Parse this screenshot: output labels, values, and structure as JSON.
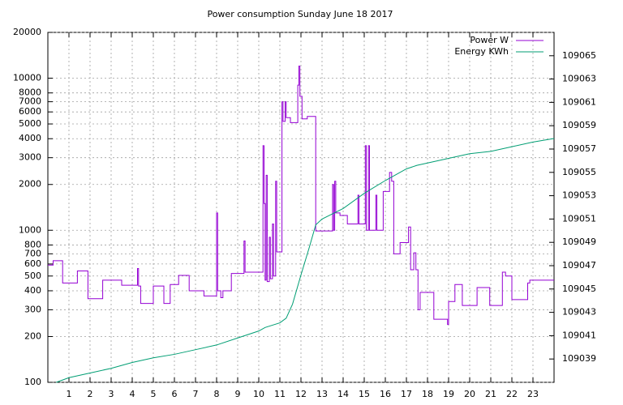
{
  "chart_data": {
    "type": "line",
    "title": "Power consumption Sunday June 18 2017",
    "xlim": [
      0,
      24
    ],
    "xticks": [
      1,
      2,
      3,
      4,
      5,
      6,
      7,
      8,
      9,
      10,
      11,
      12,
      13,
      14,
      15,
      16,
      17,
      18,
      19,
      20,
      21,
      22,
      23
    ],
    "ylim": [
      100,
      20000
    ],
    "ylog": true,
    "yticks": [
      100,
      200,
      300,
      400,
      500,
      600,
      700,
      800,
      1000,
      2000,
      3000,
      4000,
      5000,
      6000,
      7000,
      8000,
      10000,
      20000
    ],
    "y2lim": [
      109037,
      109067
    ],
    "y2ticks": [
      109039,
      109041,
      109043,
      109045,
      109047,
      109049,
      109051,
      109053,
      109055,
      109057,
      109059,
      109061,
      109063,
      109065
    ],
    "grid": true,
    "legend": "top-right",
    "series": [
      {
        "name": "Power W",
        "color": "#9400d3",
        "x": [
          0,
          0.25,
          0.25,
          0.7,
          0.7,
          1.4,
          1.4,
          1.9,
          1.9,
          2.6,
          2.6,
          3.5,
          3.5,
          4.25,
          4.25,
          4.3,
          4.3,
          4.4,
          4.4,
          5.0,
          5.0,
          5.5,
          5.5,
          5.8,
          5.8,
          6.2,
          6.2,
          6.7,
          6.7,
          7.4,
          7.4,
          8.0,
          8.0,
          8.05,
          8.05,
          8.2,
          8.2,
          8.3,
          8.3,
          8.7,
          8.7,
          9.3,
          9.3,
          9.35,
          9.35,
          10.2,
          10.2,
          10.25,
          10.25,
          10.3,
          10.3,
          10.35,
          10.35,
          10.4,
          10.4,
          10.5,
          10.5,
          10.55,
          10.55,
          10.65,
          10.65,
          10.7,
          10.7,
          10.8,
          10.8,
          10.85,
          10.85,
          11.1,
          11.1,
          11.15,
          11.15,
          11.25,
          11.25,
          11.3,
          11.3,
          11.5,
          11.5,
          11.85,
          11.85,
          11.9,
          11.9,
          11.95,
          11.95,
          12.05,
          12.05,
          12.3,
          12.3,
          12.7,
          12.7,
          13.5,
          13.5,
          13.55,
          13.55,
          13.6,
          13.6,
          13.65,
          13.65,
          13.85,
          13.85,
          14.2,
          14.2,
          14.7,
          14.7,
          14.75,
          14.75,
          15.05,
          15.05,
          15.1,
          15.1,
          15.2,
          15.2,
          15.25,
          15.25,
          15.55,
          15.55,
          15.6,
          15.6,
          15.9,
          15.9,
          16.2,
          16.2,
          16.3,
          16.3,
          16.4,
          16.4,
          16.7,
          16.7,
          17.1,
          17.1,
          17.2,
          17.2,
          17.35,
          17.35,
          17.45,
          17.45,
          17.55,
          17.55,
          17.65,
          17.65,
          18.3,
          18.3,
          18.95,
          18.95,
          19.0,
          19.0,
          19.3,
          19.3,
          19.65,
          19.65,
          20.35,
          20.35,
          20.95,
          20.95,
          21.55,
          21.55,
          21.7,
          21.7,
          22.0,
          22.0,
          22.75,
          22.75,
          22.85,
          22.85,
          24
        ],
        "values": [
          590,
          590,
          630,
          630,
          450,
          450,
          540,
          540,
          355,
          355,
          470,
          470,
          435,
          435,
          560,
          560,
          430,
          430,
          330,
          330,
          430,
          430,
          330,
          330,
          440,
          440,
          505,
          505,
          400,
          400,
          370,
          370,
          1300,
          1300,
          400,
          400,
          360,
          360,
          400,
          400,
          520,
          520,
          850,
          850,
          530,
          530,
          3600,
          3600,
          1500,
          1500,
          470,
          470,
          2300,
          2300,
          460,
          460,
          900,
          900,
          480,
          480,
          1100,
          1100,
          500,
          500,
          2100,
          2100,
          720,
          720,
          7000,
          7000,
          5200,
          5200,
          7000,
          7000,
          5500,
          5500,
          5100,
          5100,
          9000,
          9000,
          12000,
          12000,
          7600,
          7600,
          5400,
          5400,
          5600,
          5600,
          990,
          990,
          2000,
          2000,
          1000,
          1000,
          2100,
          2100,
          1300,
          1300,
          1250,
          1250,
          1100,
          1100,
          1700,
          1700,
          1100,
          1100,
          3600,
          3600,
          1000,
          1000,
          3600,
          3600,
          1000,
          1000,
          1700,
          1700,
          1000,
          1000,
          1800,
          1800,
          2400,
          2400,
          2100,
          2100,
          700,
          700,
          830,
          830,
          1050,
          1050,
          550,
          550,
          710,
          710,
          550,
          550,
          300,
          300,
          390,
          390,
          260,
          260,
          240,
          240,
          340,
          340,
          440,
          440,
          320,
          320,
          420,
          420,
          320,
          320,
          530,
          530,
          500,
          500,
          350,
          350,
          450,
          450,
          470,
          470
        ]
      },
      {
        "name": "Energy KWh",
        "color": "#009e73",
        "axis": "y2",
        "x": [
          0.4,
          1,
          2,
          3,
          4,
          5,
          6,
          7,
          8,
          9,
          10,
          10.3,
          11,
          11.3,
          11.6,
          12,
          12.4,
          12.7,
          13,
          14,
          15,
          16,
          17,
          17.5,
          18,
          19,
          20,
          21,
          22,
          23,
          24
        ],
        "values": [
          109037,
          109037.4,
          109037.8,
          109038.2,
          109038.7,
          109039.1,
          109039.4,
          109039.8,
          109040.2,
          109040.8,
          109041.4,
          109041.7,
          109042.1,
          109042.5,
          109043.7,
          109046.2,
          109048.6,
          109050.5,
          109051,
          109051.9,
          109053.2,
          109054.3,
          109055.3,
          109055.6,
          109055.8,
          109056.2,
          109056.6,
          109056.8,
          109057.2,
          109057.6,
          109057.9
        ]
      }
    ]
  }
}
